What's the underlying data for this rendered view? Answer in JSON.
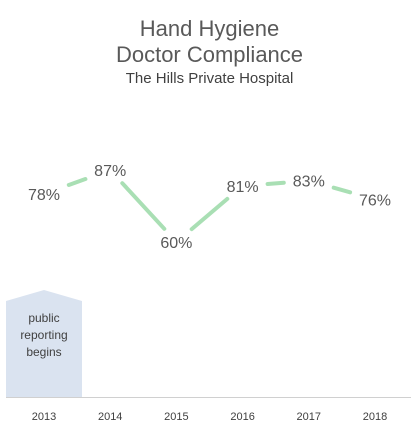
{
  "chart_data": {
    "type": "line",
    "title_lines": [
      "Hand Hygiene",
      "Doctor Compliance"
    ],
    "subtitle": "The Hills Private Hospital",
    "categories": [
      "2013",
      "2014",
      "2015",
      "2016",
      "2017",
      "2018"
    ],
    "series": [
      {
        "values": [
          78,
          87,
          60,
          81,
          83,
          76
        ],
        "labels": [
          "78%",
          "87%",
          "60%",
          "81%",
          "83%",
          "76%"
        ]
      }
    ],
    "ylim": [
      60,
      87
    ],
    "grid": false,
    "legend": "none",
    "annotation": {
      "text_lines": [
        "public",
        "reporting",
        "begins"
      ],
      "category": "2013"
    },
    "colors": {
      "line": "#a9dfb4",
      "annotation_fill": "#dae3f0",
      "text": "#595959"
    }
  }
}
